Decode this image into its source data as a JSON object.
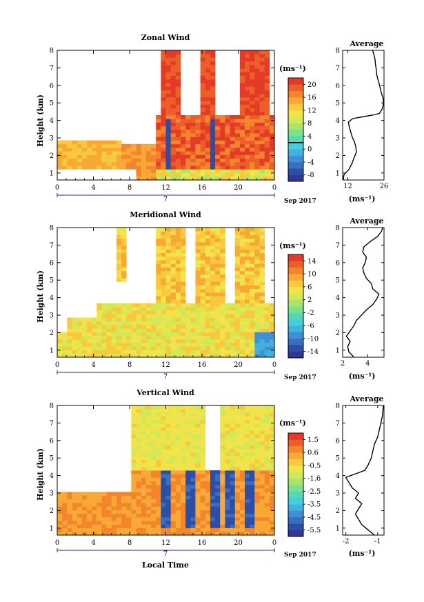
{
  "figure": {
    "xlabel": "Local Time",
    "date_label": "Sep 2017",
    "day_label": "7",
    "ylabel": "Height (km)",
    "unit_label": "(ms⁻¹)",
    "profile_title": "Average",
    "profile_xlabel": "(ms⁻¹)"
  },
  "chart_data": [
    {
      "type": "heatmap",
      "title": "Zonal Wind",
      "x_ticks": [
        "0",
        "4",
        "8",
        "12",
        "16",
        "20",
        "0"
      ],
      "y_ticks": [
        "1",
        "2",
        "3",
        "4",
        "5",
        "6",
        "7",
        "8"
      ],
      "xlim": [
        0,
        24
      ],
      "ylim": [
        0.6,
        8
      ],
      "colorbar": {
        "ticks": [
          "20",
          "16",
          "12",
          "8",
          "4",
          "0",
          "-4",
          "-8"
        ],
        "min": -10,
        "max": 22,
        "zero_line": 0
      },
      "profile": {
        "title": "Average",
        "x_ticks": [
          "12",
          "26"
        ],
        "xlim": [
          10,
          26
        ],
        "points": [
          [
            10.2,
            0.6
          ],
          [
            10.5,
            0.9
          ],
          [
            12.4,
            1.2
          ],
          [
            13.5,
            1.5
          ],
          [
            14.5,
            1.9
          ],
          [
            15.3,
            2.2
          ],
          [
            15.1,
            2.5
          ],
          [
            14.5,
            2.8
          ],
          [
            13.8,
            3.0
          ],
          [
            13.2,
            3.3
          ],
          [
            12.6,
            3.6
          ],
          [
            12.2,
            3.9
          ],
          [
            13.8,
            4.1
          ],
          [
            17.5,
            4.2
          ],
          [
            21.5,
            4.3
          ],
          [
            24.2,
            4.4
          ],
          [
            25.5,
            4.7
          ],
          [
            25.8,
            5.0
          ],
          [
            25.6,
            5.3
          ],
          [
            24.9,
            5.6
          ],
          [
            24.3,
            6.0
          ],
          [
            23.7,
            6.3
          ],
          [
            23.2,
            6.6
          ],
          [
            23.0,
            6.9
          ],
          [
            22.7,
            7.2
          ],
          [
            22.5,
            7.5
          ],
          [
            22.0,
            7.8
          ],
          [
            21.6,
            8.0
          ]
        ]
      }
    },
    {
      "type": "heatmap",
      "title": "Meridional Wind",
      "x_ticks": [
        "0",
        "4",
        "8",
        "12",
        "16",
        "20",
        "0"
      ],
      "y_ticks": [
        "1",
        "2",
        "3",
        "4",
        "5",
        "6",
        "7",
        "8"
      ],
      "xlim": [
        0,
        24
      ],
      "ylim": [
        0.6,
        8
      ],
      "colorbar": {
        "ticks": [
          "14",
          "10",
          "6",
          "2",
          "-2",
          "-6",
          "-10",
          "-14"
        ],
        "min": -16,
        "max": 16,
        "zero_line": 0
      },
      "profile": {
        "title": "Average",
        "x_ticks": [
          "2",
          "4"
        ],
        "xlim": [
          2,
          5.3
        ],
        "points": [
          [
            2.9,
            0.6
          ],
          [
            2.5,
            0.9
          ],
          [
            2.4,
            1.2
          ],
          [
            2.6,
            1.5
          ],
          [
            2.3,
            1.8
          ],
          [
            2.6,
            2.1
          ],
          [
            2.9,
            2.4
          ],
          [
            3.1,
            2.7
          ],
          [
            3.5,
            3.0
          ],
          [
            3.9,
            3.3
          ],
          [
            4.4,
            3.6
          ],
          [
            4.7,
            3.9
          ],
          [
            4.9,
            4.2
          ],
          [
            4.4,
            4.5
          ],
          [
            4.3,
            4.8
          ],
          [
            3.9,
            5.1
          ],
          [
            3.7,
            5.4
          ],
          [
            3.6,
            5.7
          ],
          [
            3.8,
            6.0
          ],
          [
            3.9,
            6.3
          ],
          [
            3.6,
            6.6
          ],
          [
            3.7,
            6.9
          ],
          [
            4.2,
            7.2
          ],
          [
            4.8,
            7.5
          ],
          [
            5.1,
            7.8
          ],
          [
            5.2,
            8.0
          ]
        ]
      }
    },
    {
      "type": "heatmap",
      "title": "Vertical Wind",
      "x_ticks": [
        "0",
        "4",
        "8",
        "12",
        "16",
        "20",
        "0"
      ],
      "y_ticks": [
        "1",
        "2",
        "3",
        "4",
        "5",
        "6",
        "7",
        "8"
      ],
      "xlim": [
        0,
        24
      ],
      "ylim": [
        0.6,
        8
      ],
      "colorbar": {
        "ticks": [
          "1.5",
          "0.6",
          "-0.5",
          "-1.6",
          "-2.5",
          "-3.5",
          "-4.5",
          "-5.5"
        ],
        "min": -6,
        "max": 2
      },
      "profile": {
        "title": "Average",
        "x_ticks": [
          "-2",
          "-1"
        ],
        "xlim": [
          -2.1,
          -0.8
        ],
        "points": [
          [
            -1.1,
            0.6
          ],
          [
            -1.3,
            0.9
          ],
          [
            -1.5,
            1.2
          ],
          [
            -1.6,
            1.5
          ],
          [
            -1.7,
            1.8
          ],
          [
            -1.6,
            2.1
          ],
          [
            -1.5,
            2.4
          ],
          [
            -1.7,
            2.7
          ],
          [
            -1.6,
            3.0
          ],
          [
            -1.8,
            3.3
          ],
          [
            -1.9,
            3.6
          ],
          [
            -2.0,
            3.9
          ],
          [
            -1.7,
            4.1
          ],
          [
            -1.4,
            4.3
          ],
          [
            -1.3,
            4.6
          ],
          [
            -1.2,
            5.0
          ],
          [
            -1.15,
            5.4
          ],
          [
            -1.1,
            5.8
          ],
          [
            -1.0,
            6.2
          ],
          [
            -0.95,
            6.6
          ],
          [
            -0.9,
            7.0
          ],
          [
            -0.85,
            7.4
          ],
          [
            -0.82,
            8.0
          ]
        ]
      }
    }
  ]
}
